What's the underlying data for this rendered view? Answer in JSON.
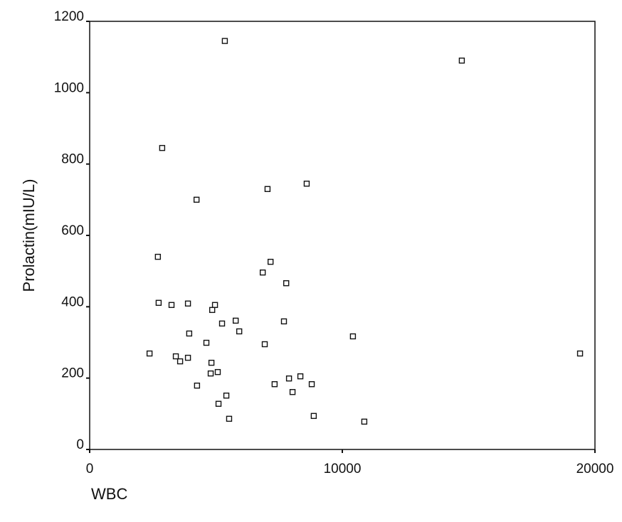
{
  "chart_data": {
    "type": "scatter",
    "x_label": "WBC",
    "y_label": "Prolactin(mIU/L)",
    "x": [
      5350,
      14730,
      2870,
      4230,
      7040,
      8590,
      2700,
      7160,
      6850,
      7780,
      2730,
      3240,
      3890,
      4960,
      4850,
      5780,
      5240,
      5920,
      3940,
      7690,
      10420,
      4620,
      6930,
      2370,
      19410,
      3410,
      3890,
      3580,
      4820,
      4790,
      5070,
      8340,
      7890,
      4250,
      7320,
      8790,
      8030,
      5410,
      5100,
      8870,
      5520,
      10870
    ],
    "values": [
      1145,
      1090,
      845,
      700,
      730,
      745,
      540,
      526,
      496,
      466,
      411,
      405,
      409,
      405,
      391,
      361,
      353,
      331,
      325,
      359,
      317,
      299,
      295,
      269,
      269,
      261,
      257,
      247,
      243,
      213,
      217,
      205,
      199,
      179,
      183,
      183,
      161,
      151,
      128,
      94,
      86,
      78
    ],
    "color": "#111111",
    "xlim": [
      0,
      20000
    ],
    "ylim": [
      0,
      1200
    ],
    "xticks": [
      0,
      10000,
      20000
    ],
    "yticks": [
      0,
      200,
      400,
      600,
      800,
      1000,
      1200
    ],
    "grid": false
  }
}
